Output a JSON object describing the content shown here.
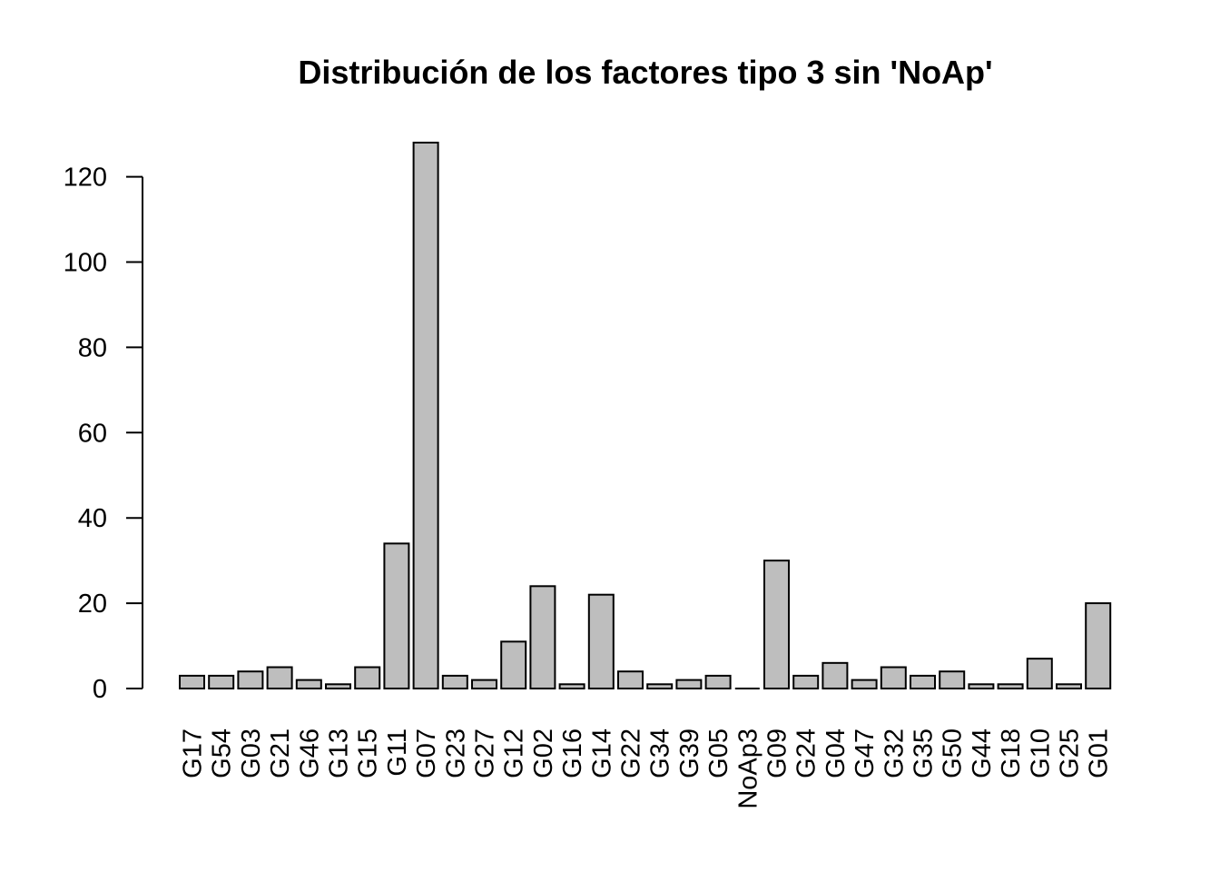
{
  "chart_data": {
    "type": "bar",
    "title": "Distribución de los factores tipo 3 sin 'NoAp'",
    "xlabel": "",
    "ylabel": "",
    "categories": [
      "G17",
      "G54",
      "G03",
      "G21",
      "G46",
      "G13",
      "G15",
      "G11",
      "G07",
      "G23",
      "G27",
      "G12",
      "G02",
      "G16",
      "G14",
      "G22",
      "G34",
      "G39",
      "G05",
      "NoAp3",
      "G09",
      "G24",
      "G04",
      "G47",
      "G32",
      "G35",
      "G50",
      "G44",
      "G18",
      "G10",
      "G25",
      "G01"
    ],
    "values": [
      3,
      3,
      4,
      5,
      2,
      1,
      5,
      34,
      128,
      3,
      2,
      11,
      24,
      1,
      22,
      4,
      1,
      2,
      3,
      0,
      30,
      3,
      6,
      2,
      5,
      3,
      4,
      1,
      1,
      7,
      1,
      20
    ],
    "ylim": [
      0,
      128
    ],
    "yticks": [
      0,
      20,
      40,
      60,
      80,
      100,
      120
    ],
    "grid": false,
    "legend": "none",
    "bar_color": "#bebebe",
    "bar_edge_color": "#000000",
    "x_tick_rotation": "vertical"
  }
}
